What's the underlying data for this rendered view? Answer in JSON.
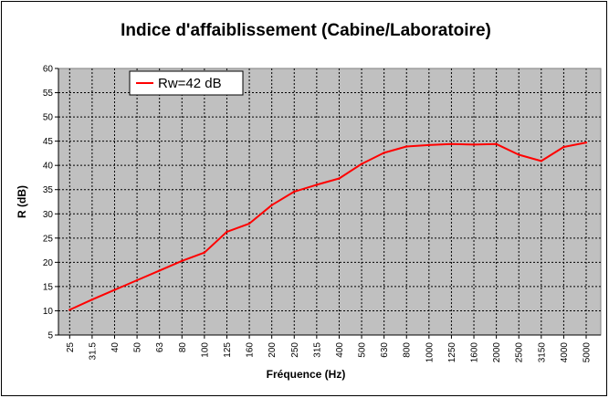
{
  "chart_data": {
    "type": "line",
    "title": "Indice d'affaiblissement (Cabine/Laboratoire)",
    "xlabel": "Fréquence (Hz)",
    "ylabel": "R (dB)",
    "ylim": [
      5,
      60
    ],
    "yticks": [
      5,
      10,
      15,
      20,
      25,
      30,
      35,
      40,
      45,
      50,
      55,
      60
    ],
    "grid": true,
    "legend_position": "top-left",
    "background_color": "#c0c0c0",
    "categories": [
      "25",
      "31.5",
      "40",
      "50",
      "63",
      "80",
      "100",
      "125",
      "160",
      "200",
      "250",
      "315",
      "400",
      "500",
      "630",
      "800",
      "1000",
      "1250",
      "1600",
      "2000",
      "2500",
      "3150",
      "4000",
      "5000"
    ],
    "series": [
      {
        "name": "Rw=42 dB",
        "color": "#ff0000",
        "values": [
          10.2,
          12.3,
          14.3,
          16.3,
          18.3,
          20.3,
          22.0,
          26.3,
          28.0,
          31.8,
          34.6,
          36.0,
          37.3,
          40.3,
          42.6,
          43.9,
          44.2,
          44.4,
          44.3,
          44.4,
          42.2,
          40.9,
          43.8,
          44.7
        ]
      }
    ]
  }
}
